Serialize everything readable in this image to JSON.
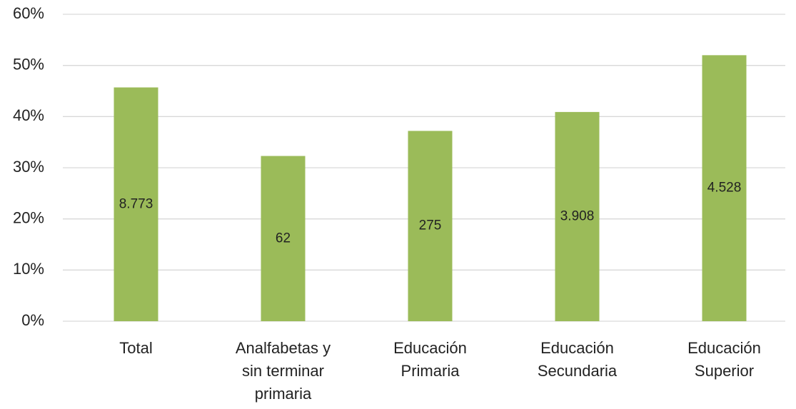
{
  "chart_data": {
    "type": "bar",
    "categories": [
      "Total",
      "Analfabetas y sin terminar primaria",
      "Educación Primaria",
      "Educación Secundaria",
      "Educación Superior"
    ],
    "values": [
      45.7,
      32.3,
      37.2,
      40.9,
      52.0
    ],
    "bar_labels": [
      "8.773",
      "62",
      "275",
      "3.908",
      "4.528"
    ],
    "color": "#9bbb59",
    "ylim": [
      0,
      60
    ],
    "yticks": [
      {
        "value": 0,
        "label": "0%"
      },
      {
        "value": 10,
        "label": "10%"
      },
      {
        "value": 20,
        "label": "20%"
      },
      {
        "value": 30,
        "label": "30%"
      },
      {
        "value": 40,
        "label": "40%"
      },
      {
        "value": 50,
        "label": "50%"
      },
      {
        "value": 60,
        "label": "60%"
      }
    ],
    "grid": true
  }
}
